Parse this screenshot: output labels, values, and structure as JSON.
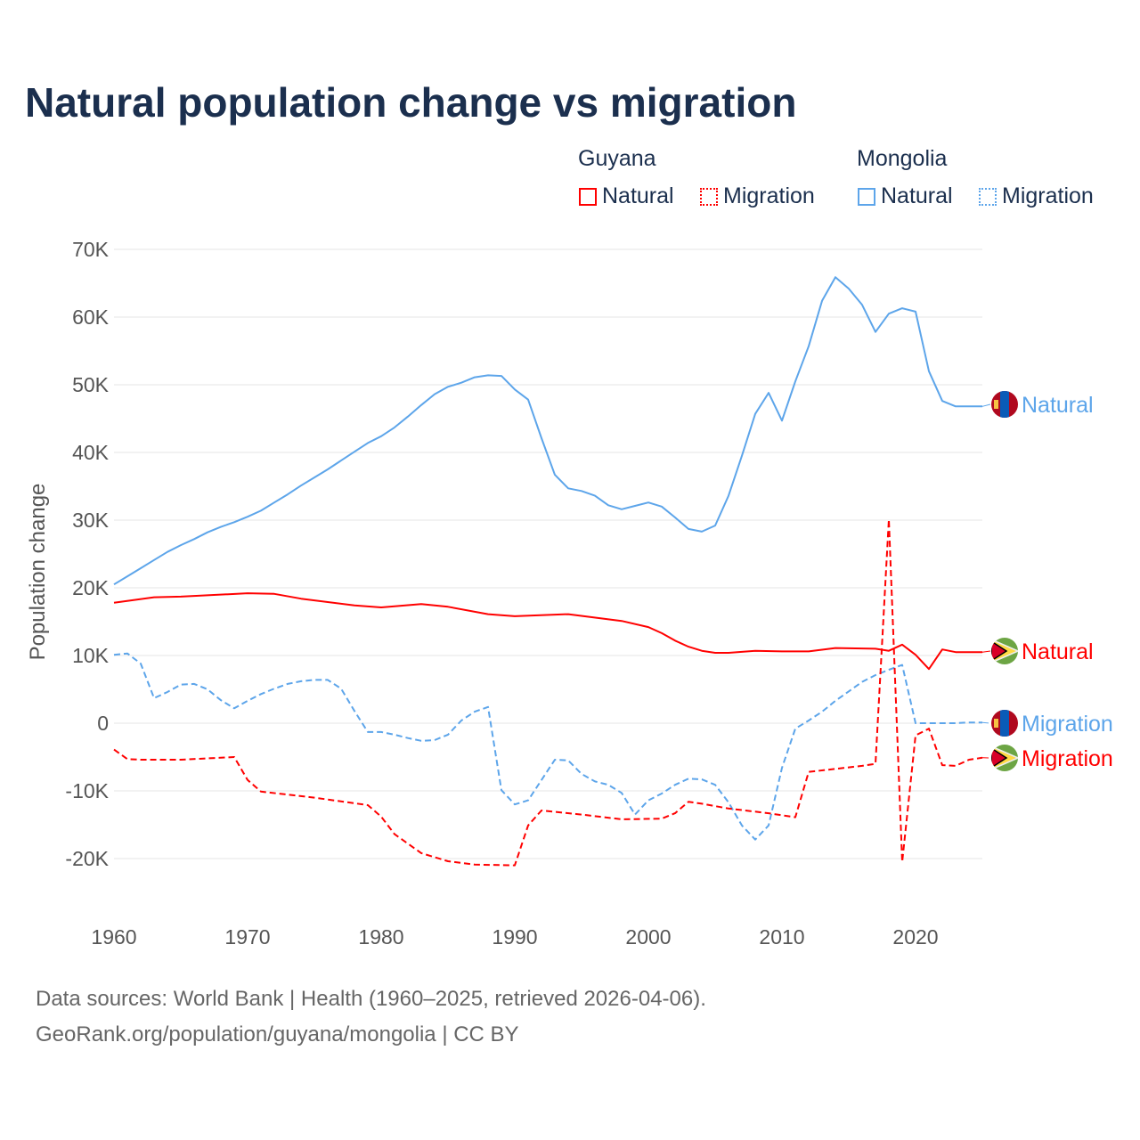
{
  "legend": {
    "groups": [
      {
        "country": "Guyana",
        "items": [
          "Natural",
          "Migration"
        ]
      },
      {
        "country": "Mongolia",
        "items": [
          "Natural",
          "Migration"
        ]
      }
    ]
  },
  "colors": {
    "guyana": "#ff0000",
    "mongolia": "#5da5ea",
    "text": "#1b2f4e"
  },
  "footer": {
    "line1": "Data sources: World Bank | Health (1960–2025, retrieved 2026-04-06).",
    "line2": "GeoRank.org/population/guyana/mongolia | CC BY"
  },
  "chart_data": {
    "type": "line",
    "title": "Natural population change vs migration",
    "xlabel": "",
    "ylabel": "Population change",
    "xlim": [
      1960,
      2025
    ],
    "ylim": [
      -20000,
      70000
    ],
    "x_ticks": [
      1960,
      1970,
      1980,
      1990,
      2000,
      2010,
      2020
    ],
    "y_ticks": [
      {
        "v": 70000,
        "label": "70K"
      },
      {
        "v": 60000,
        "label": "60K"
      },
      {
        "v": 50000,
        "label": "50K"
      },
      {
        "v": 40000,
        "label": "40K"
      },
      {
        "v": 30000,
        "label": "30K"
      },
      {
        "v": 20000,
        "label": "20K"
      },
      {
        "v": 10000,
        "label": "10K"
      },
      {
        "v": 0,
        "label": "0"
      },
      {
        "v": -10000,
        "label": "-10K"
      },
      {
        "v": -20000,
        "label": "-20K"
      }
    ],
    "grid": true,
    "series": [
      {
        "name": "Mongolia Natural",
        "country": "Mongolia",
        "end_label": "Natural",
        "color": "#5da5ea",
        "dash": false,
        "x": [
          1960,
          1961,
          1962,
          1963,
          1964,
          1965,
          1966,
          1967,
          1968,
          1969,
          1970,
          1971,
          1972,
          1973,
          1974,
          1975,
          1976,
          1977,
          1978,
          1979,
          1980,
          1981,
          1982,
          1983,
          1984,
          1985,
          1986,
          1987,
          1988,
          1989,
          1990,
          1991,
          1992,
          1993,
          1994,
          1995,
          1996,
          1997,
          1998,
          1999,
          2000,
          2001,
          2002,
          2003,
          2004,
          2005,
          2006,
          2007,
          2008,
          2009,
          2010,
          2011,
          2012,
          2013,
          2014,
          2015,
          2016,
          2017,
          2018,
          2019,
          2020,
          2021,
          2022,
          2023,
          2024,
          2025
        ],
        "y": [
          20500,
          21700,
          22900,
          24100,
          25300,
          26300,
          27200,
          28200,
          29000,
          29700,
          30500,
          31400,
          32600,
          33800,
          35100,
          36300,
          37500,
          38800,
          40100,
          41400,
          42400,
          43700,
          45300,
          47000,
          48600,
          49700,
          50300,
          51100,
          51400,
          51300,
          49300,
          47800,
          42100,
          36700,
          34700,
          34300,
          33600,
          32200,
          31600,
          32100,
          32600,
          32000,
          30400,
          28700,
          28300,
          29200,
          33600,
          39500,
          45700,
          48800,
          44700,
          50500,
          55700,
          62400,
          65900,
          64200,
          61800,
          57800,
          60500,
          61300,
          60800,
          52000,
          47600,
          46800,
          46800,
          46800
        ]
      },
      {
        "name": "Guyana Natural",
        "country": "Guyana",
        "end_label": "Natural",
        "color": "#ff0000",
        "dash": false,
        "x": [
          1960,
          1963,
          1965,
          1970,
          1972,
          1974,
          1978,
          1980,
          1983,
          1985,
          1988,
          1990,
          1994,
          1998,
          2000,
          2001,
          2002,
          2003,
          2004,
          2005,
          2006,
          2008,
          2010,
          2012,
          2014,
          2017,
          2018,
          2019,
          2020,
          2021,
          2022,
          2023,
          2024,
          2025
        ],
        "y": [
          17800,
          18600,
          18700,
          19200,
          19100,
          18400,
          17400,
          17100,
          17600,
          17200,
          16100,
          15800,
          16100,
          15100,
          14200,
          13300,
          12200,
          11300,
          10700,
          10400,
          10400,
          10700,
          10600,
          10600,
          11100,
          11000,
          10700,
          11600,
          10100,
          8000,
          10900,
          10500,
          10500,
          10500
        ]
      },
      {
        "name": "Mongolia Migration",
        "country": "Mongolia",
        "end_label": "Migration",
        "color": "#5da5ea",
        "dash": true,
        "x": [
          1960,
          1961,
          1962,
          1963,
          1964,
          1965,
          1966,
          1967,
          1968,
          1969,
          1970,
          1971,
          1972,
          1973,
          1974,
          1975,
          1976,
          1977,
          1978,
          1979,
          1980,
          1981,
          1982,
          1983,
          1984,
          1985,
          1986,
          1987,
          1988,
          1989,
          1990,
          1991,
          1992,
          1993,
          1994,
          1995,
          1996,
          1997,
          1998,
          1999,
          2000,
          2001,
          2002,
          2003,
          2004,
          2005,
          2006,
          2007,
          2008,
          2009,
          2010,
          2011,
          2012,
          2013,
          2014,
          2015,
          2016,
          2017,
          2018,
          2019,
          2020,
          2021,
          2022,
          2023,
          2024,
          2025
        ],
        "y": [
          10100,
          10300,
          8800,
          3700,
          4600,
          5700,
          5800,
          5000,
          3400,
          2200,
          3300,
          4300,
          5100,
          5800,
          6200,
          6400,
          6400,
          5100,
          1800,
          -1300,
          -1300,
          -1700,
          -2200,
          -2600,
          -2500,
          -1700,
          400,
          1700,
          2400,
          -9900,
          -12000,
          -11400,
          -8400,
          -5400,
          -5500,
          -7500,
          -8600,
          -9100,
          -10300,
          -13500,
          -11400,
          -10400,
          -9100,
          -8200,
          -8300,
          -9100,
          -11700,
          -15100,
          -17200,
          -15100,
          -6600,
          -800,
          400,
          1700,
          3300,
          4700,
          6100,
          7100,
          7900,
          8600,
          0,
          0,
          0,
          0,
          100,
          100
        ]
      },
      {
        "name": "Guyana Migration",
        "country": "Guyana",
        "end_label": "Migration",
        "color": "#ff0000",
        "dash": true,
        "x": [
          1960,
          1961,
          1962,
          1965,
          1969,
          1970,
          1971,
          1975,
          1979,
          1980,
          1981,
          1983,
          1985,
          1987,
          1990,
          1991,
          1992,
          1995,
          1998,
          2001,
          2002,
          2003,
          2004,
          2006,
          2009,
          2011,
          2012,
          2016,
          2017,
          2018,
          2019,
          2020,
          2021,
          2022,
          2023,
          2024,
          2025
        ],
        "y": [
          -3900,
          -5300,
          -5400,
          -5400,
          -5000,
          -8400,
          -10100,
          -11000,
          -12100,
          -13800,
          -16400,
          -19200,
          -20400,
          -20900,
          -21000,
          -15100,
          -12900,
          -13500,
          -14200,
          -14100,
          -13300,
          -11600,
          -11900,
          -12600,
          -13300,
          -13900,
          -7200,
          -6300,
          -6000,
          30100,
          -20500,
          -1800,
          -800,
          -6200,
          -6300,
          -5400,
          -5100
        ]
      }
    ]
  }
}
